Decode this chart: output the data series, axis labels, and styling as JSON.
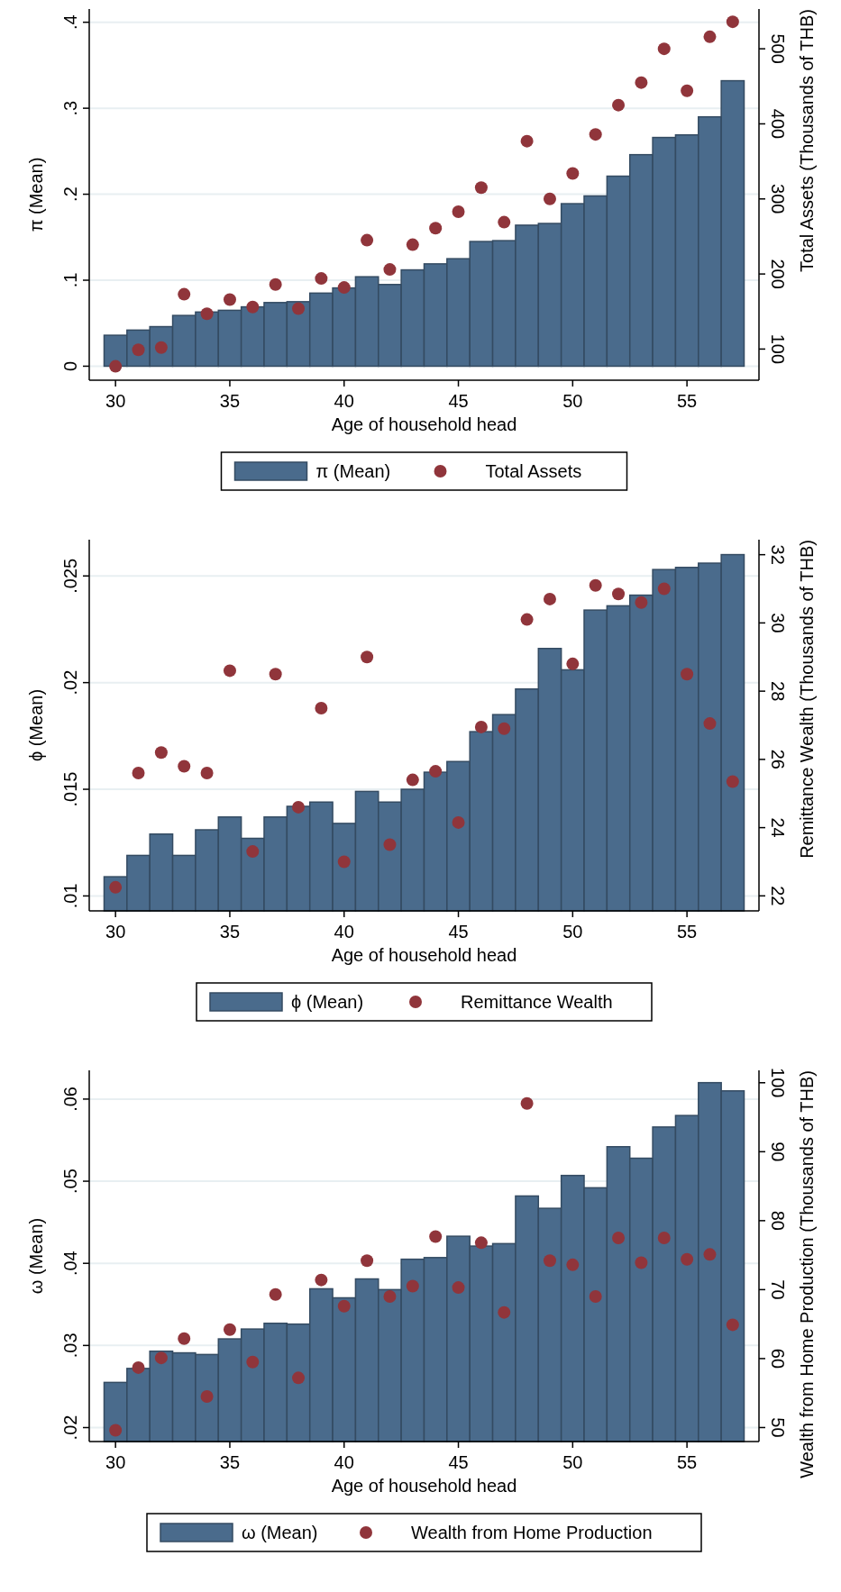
{
  "chart_data": [
    {
      "type": "bar",
      "xlabel": "Age of household head",
      "ylabel": "π (Mean)",
      "y2label": "Total Assets (Thousands of THB)",
      "x": [
        30,
        31,
        32,
        33,
        34,
        35,
        36,
        37,
        38,
        39,
        40,
        41,
        42,
        43,
        44,
        45,
        46,
        47,
        48,
        49,
        50,
        51,
        52,
        53,
        54,
        55,
        56,
        57
      ],
      "xlim": [
        28.85,
        58.15
      ],
      "xticks": [
        30,
        35,
        40,
        45,
        50,
        55
      ],
      "ylim": [
        -0.0163,
        0.4154
      ],
      "yticks": [
        0,
        {
          "value": 0.1,
          "label": ".1"
        },
        {
          "value": 0.2,
          "label": ".2"
        },
        {
          "value": 0.3,
          "label": ".3"
        },
        {
          "value": 0.4,
          "label": ".4"
        }
      ],
      "y2lim": [
        58.5,
        553
      ],
      "y2ticks": [
        100,
        200,
        300,
        400,
        500
      ],
      "grid": "y",
      "legend": "bottom",
      "marker": "circle",
      "series": [
        {
          "name": "π (Mean)",
          "type": "bar",
          "color": "#4a6b8c",
          "values": [
            0.036,
            0.042,
            0.046,
            0.059,
            0.063,
            0.065,
            0.069,
            0.074,
            0.075,
            0.085,
            0.091,
            0.104,
            0.095,
            0.112,
            0.119,
            0.125,
            0.145,
            0.146,
            0.164,
            0.166,
            0.189,
            0.198,
            0.221,
            0.246,
            0.266,
            0.269,
            0.29,
            0.332
          ]
        },
        {
          "name": "Total Assets",
          "type": "scatter",
          "axis": "y2",
          "color": "#90353b",
          "values": [
            77,
            99,
            102,
            173,
            147,
            166,
            156,
            186,
            154,
            194,
            182,
            245,
            206,
            239,
            261,
            283,
            315,
            269,
            377,
            300,
            334,
            386,
            425,
            455,
            500,
            444,
            516,
            536
          ]
        }
      ]
    },
    {
      "type": "bar",
      "xlabel": "Age of household head",
      "ylabel": "ϕ (Mean)",
      "y2label": "Remittance Wealth (Thousands of THB)",
      "x": [
        30,
        31,
        32,
        33,
        34,
        35,
        36,
        37,
        38,
        39,
        40,
        41,
        42,
        43,
        44,
        45,
        46,
        47,
        48,
        49,
        50,
        51,
        52,
        53,
        54,
        55,
        56,
        57
      ],
      "xlim": [
        28.85,
        58.15
      ],
      "xticks": [
        30,
        35,
        40,
        45,
        50,
        55
      ],
      "ylim": [
        0.0093,
        0.0267
      ],
      "yticks": [
        {
          "value": 0.01,
          "label": ".01"
        },
        {
          "value": 0.015,
          "label": ".015"
        },
        {
          "value": 0.02,
          "label": ".02"
        },
        {
          "value": 0.025,
          "label": ".025"
        }
      ],
      "y2lim": [
        21.56,
        32.44
      ],
      "y2ticks": [
        22,
        24,
        26,
        28,
        30,
        32
      ],
      "grid": "y",
      "legend": "bottom",
      "marker": "circle",
      "series": [
        {
          "name": "ϕ (Mean)",
          "type": "bar",
          "color": "#4a6b8c",
          "values": [
            0.0109,
            0.0119,
            0.0129,
            0.0119,
            0.0131,
            0.0137,
            0.0127,
            0.0137,
            0.0142,
            0.0144,
            0.0134,
            0.0149,
            0.0144,
            0.015,
            0.0158,
            0.0163,
            0.0177,
            0.0185,
            0.0197,
            0.0216,
            0.0206,
            0.0234,
            0.0236,
            0.0241,
            0.0253,
            0.0254,
            0.0256,
            0.026
          ]
        },
        {
          "name": "Remittance Wealth",
          "type": "scatter",
          "axis": "y2",
          "color": "#90353b",
          "values": [
            22.25,
            25.6,
            26.2,
            25.8,
            25.6,
            28.6,
            23.3,
            28.5,
            24.6,
            27.5,
            23.0,
            29.0,
            23.5,
            25.4,
            25.65,
            24.15,
            26.95,
            26.9,
            30.1,
            30.7,
            28.8,
            31.1,
            30.85,
            30.6,
            31.0,
            28.5,
            27.05,
            25.35
          ]
        }
      ]
    },
    {
      "type": "bar",
      "xlabel": "Age of household head",
      "ylabel": "ω (Mean)",
      "y2label": "Wealth from Home Production (Thousands of THB)",
      "x": [
        30,
        31,
        32,
        33,
        34,
        35,
        36,
        37,
        38,
        39,
        40,
        41,
        42,
        43,
        44,
        45,
        46,
        47,
        48,
        49,
        50,
        51,
        52,
        53,
        54,
        55,
        56,
        57
      ],
      "xlim": [
        28.85,
        58.15
      ],
      "xticks": [
        30,
        35,
        40,
        45,
        50,
        55
      ],
      "ylim": [
        0.0183,
        0.0635
      ],
      "yticks": [
        {
          "value": 0.02,
          "label": ".02"
        },
        {
          "value": 0.03,
          "label": ".03"
        },
        {
          "value": 0.04,
          "label": ".04"
        },
        {
          "value": 0.05,
          "label": ".05"
        },
        {
          "value": 0.06,
          "label": ".06"
        }
      ],
      "y2lim": [
        47.97,
        101.8
      ],
      "y2ticks": [
        50,
        60,
        70,
        80,
        90,
        100
      ],
      "grid": "y",
      "legend": "bottom",
      "marker": "circle",
      "series": [
        {
          "name": "ω (Mean)",
          "type": "bar",
          "color": "#4a6b8c",
          "values": [
            0.0255,
            0.0272,
            0.0293,
            0.0291,
            0.0289,
            0.0308,
            0.032,
            0.0327,
            0.0326,
            0.0369,
            0.0358,
            0.0381,
            0.0368,
            0.0405,
            0.0407,
            0.0433,
            0.0421,
            0.0424,
            0.0482,
            0.0467,
            0.0507,
            0.0492,
            0.0542,
            0.0528,
            0.0566,
            0.058,
            0.062,
            0.061
          ]
        },
        {
          "name": "Wealth from Home Production",
          "type": "scatter",
          "axis": "y2",
          "color": "#90353b",
          "values": [
            49.6,
            58.7,
            60.1,
            62.9,
            54.5,
            64.2,
            59.5,
            69.3,
            57.2,
            71.4,
            67.6,
            74.2,
            69.0,
            70.5,
            77.7,
            70.3,
            76.8,
            66.7,
            97.0,
            74.2,
            73.6,
            69.0,
            77.5,
            73.9,
            77.5,
            74.4,
            75.1,
            64.9
          ]
        }
      ]
    }
  ]
}
